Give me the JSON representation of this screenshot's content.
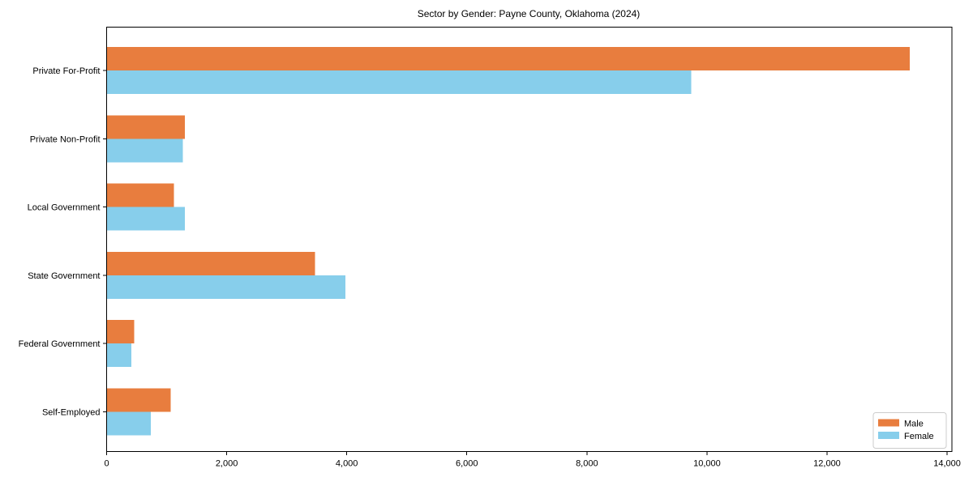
{
  "chart_data": {
    "type": "bar",
    "orientation": "horizontal",
    "title": "Sector by Gender: Payne County, Oklahoma (2024)",
    "categories": [
      "Private For-Profit",
      "Private Non-Profit",
      "Local Government",
      "State Government",
      "Federal Government",
      "Self-Employed"
    ],
    "series": [
      {
        "name": "Male",
        "color": "#e87d3e",
        "values": [
          13375,
          1300,
          1120,
          3470,
          460,
          1070
        ]
      },
      {
        "name": "Female",
        "color": "#87ceeb",
        "values": [
          9740,
          1270,
          1300,
          3980,
          410,
          735
        ]
      }
    ],
    "xlabel": "",
    "ylabel": "",
    "xlim": [
      0,
      14080
    ],
    "xticks": [
      0,
      2000,
      4000,
      6000,
      8000,
      10000,
      12000,
      14000
    ],
    "xtick_labels": [
      "0",
      "2,000",
      "4,000",
      "6,000",
      "8,000",
      "10,000",
      "12,000",
      "14,000"
    ],
    "grid": false,
    "legend": {
      "position": "lower right",
      "entries": [
        "Male",
        "Female"
      ],
      "border_color": "#cccccc"
    },
    "axis_color": "#000000",
    "background_color": "#ffffff"
  }
}
